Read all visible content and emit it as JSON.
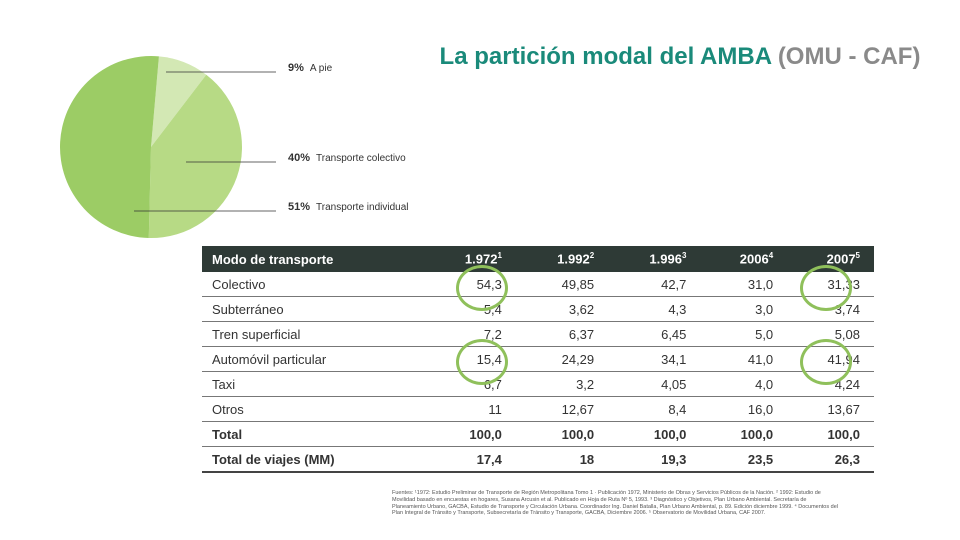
{
  "title": {
    "main": "La partición modal del AMBA",
    "source": "(OMU - CAF)"
  },
  "pie": {
    "slices": [
      {
        "percent": "9%",
        "label": "A pie",
        "value": 9,
        "color": "#d3e8b4"
      },
      {
        "percent": "40%",
        "label": "Transporte colectivo",
        "value": 40,
        "color": "#b7da85"
      },
      {
        "percent": "51%",
        "label": "Transporte individual",
        "value": 51,
        "color": "#9ccc65"
      }
    ]
  },
  "table": {
    "headers": [
      {
        "text": "Modo de transporte",
        "sup": ""
      },
      {
        "text": "1.972",
        "sup": "1"
      },
      {
        "text": "1.992",
        "sup": "2"
      },
      {
        "text": "1.996",
        "sup": "3"
      },
      {
        "text": "2006",
        "sup": "4"
      },
      {
        "text": "2007",
        "sup": "5"
      }
    ],
    "rows": [
      [
        "Colectivo",
        "54,3",
        "49,85",
        "42,7",
        "31,0",
        "31,33"
      ],
      [
        "Subterráneo",
        "5,4",
        "3,62",
        "4,3",
        "3,0",
        "3,74"
      ],
      [
        "Tren superficial",
        "7,2",
        "6,37",
        "6,45",
        "5,0",
        "5,08"
      ],
      [
        "Automóvil particular",
        "15,4",
        "24,29",
        "34,1",
        "41,0",
        "41,94"
      ],
      [
        "Taxi",
        "6,7",
        "3,2",
        "4,05",
        "4,0",
        "4,24"
      ],
      [
        "Otros",
        "11",
        "12,67",
        "8,4",
        "16,0",
        "13,67"
      ],
      [
        "Total",
        "100,0",
        "100,0",
        "100,0",
        "100,0",
        "100,0"
      ],
      [
        "Total de viajes (MM)",
        "17,4",
        "18",
        "19,3",
        "23,5",
        "26,3"
      ]
    ]
  },
  "footnote": "Fuentes: ¹1972: Estudio Preliminar de Transporte de Región Metropolitana Tomo 1 · Publicación 1972, Ministerio de Obras y Servicios Públicos de la Nación. ² 1992: Estudio de Movilidad basado en encuestas en hogares, Susana Arcusin et al. Publicado en Hoja de Ruta Nº 5, 1993. ³ Diagnóstico y Objetivos, Plan Urbano Ambiental. Secretaría de Planeamiento Urbano, GACBA, Estudio de Transporte y Circulación Urbana. Coordinador Ing. Daniel Batalla, Plan Urbano Ambiental, p. 89. Edición diciembre 1999. ⁴ Documentos del Plan Integral de Tránsito y Transporte, Subsecretaría de Tránsito y Transporte, GACBA, Diciembre 2006. ⁵ Observatorio de Movilidad Urbana, CAF 2007."
}
